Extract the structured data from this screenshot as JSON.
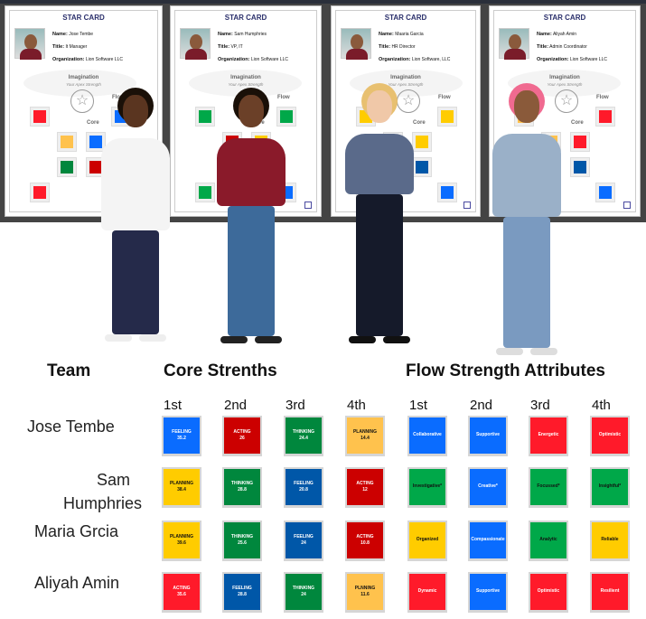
{
  "cards": [
    {
      "title": "STAR CARD",
      "name_label": "Name:",
      "name": "Jose Tembe",
      "title_label": "Title:",
      "title_value": "It Manager",
      "org_label": "Organization:",
      "org": "Lion Software LLC",
      "imagination": "Imagination",
      "apex": "Your Apex Strength",
      "flow": "Flow",
      "core": "Core"
    },
    {
      "title": "STAR CARD",
      "name_label": "Name:",
      "name": "Sam Humphries",
      "title_label": "Title:",
      "title_value": "VP, IT",
      "org_label": "Organization:",
      "org": "Lion Software LLC",
      "imagination": "Imagination",
      "apex": "Your Apex Strength",
      "flow": "Flow",
      "core": "Core"
    },
    {
      "title": "STAR CARD",
      "name_label": "Name:",
      "name": "Maaria Garcia",
      "title_label": "Title:",
      "title_value": "HR Director",
      "org_label": "Organization:",
      "org": "Lion Software, LLC",
      "imagination": "Imagination",
      "apex": "Your Apex Strength",
      "flow": "Flow",
      "core": "Core"
    },
    {
      "title": "STAR CARD",
      "name_label": "Name:",
      "name": "Aliyah Amin",
      "title_label": "Title:",
      "title_value": "Admin Coordinator",
      "org_label": "Organization:",
      "org": "Lion Software LLC",
      "imagination": "Imagination",
      "apex": "Your Apex Strength",
      "flow": "Flow",
      "core": "Core"
    }
  ],
  "headers": {
    "team": "Team",
    "core": "Core Strenths",
    "flow": "Flow Strength Attributes"
  },
  "columns": [
    "1st",
    "2nd",
    "3rd",
    "4th"
  ],
  "colors": {
    "blue": "#0a6cff",
    "red": "#cc0000",
    "green": "#00873d",
    "orange": "#ffc24d",
    "yellow": "#ffcc00",
    "navy": "#0057a8",
    "brightred": "#ff1a2a",
    "lgreen": "#00a849"
  },
  "team": [
    {
      "name": "Jose Tembe",
      "core": [
        [
          "FEELING",
          "35.2",
          "blue"
        ],
        [
          "ACTING",
          "26",
          "red"
        ],
        [
          "THINKING",
          "24.4",
          "green"
        ],
        [
          "PLANNING",
          "14.4",
          "orange"
        ]
      ],
      "flow": [
        [
          "Collaborative",
          "blue"
        ],
        [
          "Supportive",
          "blue"
        ],
        [
          "Energetic",
          "brightred"
        ],
        [
          "Optimistic",
          "brightred"
        ]
      ]
    },
    {
      "name": "Sam Humphries",
      "core": [
        [
          "PLANNING",
          "38.4",
          "yellow"
        ],
        [
          "THINKING",
          "28.8",
          "green"
        ],
        [
          "FEELING",
          "20.8",
          "navy"
        ],
        [
          "ACTING",
          "12",
          "red"
        ]
      ],
      "flow": [
        [
          "Investigative*",
          "lgreen"
        ],
        [
          "Creative*",
          "blue"
        ],
        [
          "Focussed*",
          "lgreen"
        ],
        [
          "Insightful*",
          "lgreen"
        ]
      ]
    },
    {
      "name": "Maria Grcia",
      "core": [
        [
          "PLANNING",
          "39.6",
          "yellow"
        ],
        [
          "THINKING",
          "25.6",
          "green"
        ],
        [
          "FEELING",
          "24",
          "navy"
        ],
        [
          "ACTING",
          "10.8",
          "red"
        ]
      ],
      "flow": [
        [
          "Organized",
          "yellow"
        ],
        [
          "Compassionate",
          "blue"
        ],
        [
          "Analytic",
          "lgreen"
        ],
        [
          "Reliable",
          "yellow"
        ]
      ]
    },
    {
      "name": "Aliyah Amin",
      "core": [
        [
          "ACTING",
          "35.6",
          "brightred"
        ],
        [
          "FEELING",
          "28.8",
          "navy"
        ],
        [
          "THINKING",
          "24",
          "green"
        ],
        [
          "PLNNING",
          "11.6",
          "orange"
        ]
      ],
      "flow": [
        [
          "Dynamic",
          "brightred"
        ],
        [
          "Supportive",
          "blue"
        ],
        [
          "Optimistic",
          "brightred"
        ],
        [
          "Resilient",
          "brightred"
        ]
      ]
    }
  ]
}
